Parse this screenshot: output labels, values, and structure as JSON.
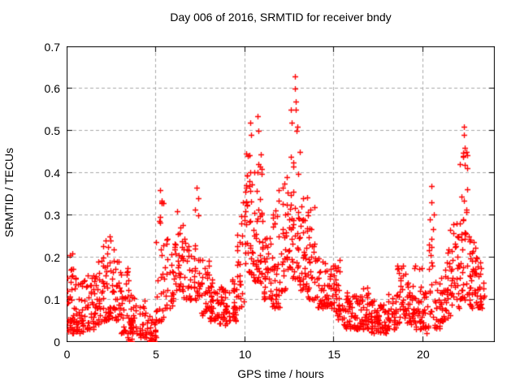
{
  "figure_title": "Day 006 of 2016, SRMTID for receiver bndy",
  "chart_data": {
    "type": "scatter",
    "title": "Day 006 of 2016, SRMTID for receiver bndy",
    "xlabel": "GPS time / hours",
    "ylabel": "SRMTID / TECUs",
    "xlim": [
      0,
      24
    ],
    "ylim": [
      0,
      0.7
    ],
    "x_ticks": [
      0,
      5,
      10,
      15,
      20
    ],
    "x_tick_labels": [
      "0",
      "5",
      "10",
      "15",
      "20"
    ],
    "y_ticks": [
      0,
      0.1,
      0.2,
      0.3,
      0.4,
      0.5,
      0.6,
      0.7
    ],
    "y_tick_labels": [
      "0",
      "0.1",
      "0.2",
      "0.3",
      "0.4",
      "0.5",
      "0.6",
      "0.7"
    ],
    "grid": "dashed-gray-at-major-ticks",
    "grid_color": "#a9a9a9",
    "marker": "plus",
    "marker_color": "#ff0000",
    "marker_size_px": 7,
    "series_name": "SRMTID",
    "y_skew": 1.6,
    "cluster_fields": [
      "x_start_hour",
      "x_end_hour",
      "y_min_tecu",
      "y_max_tecu",
      "point_count"
    ],
    "clusters": [
      [
        0.0,
        0.5,
        0.02,
        0.21,
        40
      ],
      [
        0.5,
        1.0,
        0.02,
        0.15,
        36
      ],
      [
        1.0,
        1.5,
        0.03,
        0.17,
        32
      ],
      [
        1.5,
        2.0,
        0.04,
        0.2,
        32
      ],
      [
        2.0,
        2.5,
        0.05,
        0.25,
        36
      ],
      [
        2.5,
        3.0,
        0.05,
        0.22,
        32
      ],
      [
        3.0,
        3.5,
        0.02,
        0.18,
        30
      ],
      [
        3.4,
        3.7,
        0.0,
        0.06,
        14
      ],
      [
        3.5,
        4.0,
        0.02,
        0.12,
        28
      ],
      [
        4.0,
        4.5,
        0.01,
        0.1,
        26
      ],
      [
        4.5,
        5.0,
        0.0,
        0.08,
        26
      ],
      [
        5.0,
        5.5,
        0.05,
        0.34,
        26
      ],
      [
        5.5,
        6.0,
        0.08,
        0.25,
        26
      ],
      [
        6.0,
        6.5,
        0.12,
        0.3,
        30
      ],
      [
        6.5,
        7.0,
        0.1,
        0.25,
        26
      ],
      [
        7.0,
        7.5,
        0.1,
        0.35,
        26
      ],
      [
        7.5,
        8.0,
        0.06,
        0.2,
        26
      ],
      [
        8.0,
        8.5,
        0.05,
        0.15,
        34
      ],
      [
        8.5,
        9.0,
        0.04,
        0.13,
        34
      ],
      [
        9.0,
        9.5,
        0.05,
        0.15,
        26
      ],
      [
        9.5,
        10.0,
        0.08,
        0.32,
        30
      ],
      [
        10.0,
        10.5,
        0.15,
        0.45,
        42
      ],
      [
        10.5,
        11.0,
        0.14,
        0.46,
        42
      ],
      [
        11.0,
        11.5,
        0.1,
        0.3,
        30
      ],
      [
        11.5,
        12.0,
        0.08,
        0.34,
        36
      ],
      [
        12.0,
        12.5,
        0.12,
        0.4,
        36
      ],
      [
        12.5,
        13.0,
        0.15,
        0.52,
        36
      ],
      [
        13.0,
        13.5,
        0.12,
        0.35,
        36
      ],
      [
        13.5,
        14.0,
        0.1,
        0.32,
        30
      ],
      [
        14.0,
        14.5,
        0.08,
        0.2,
        30
      ],
      [
        14.5,
        15.0,
        0.08,
        0.18,
        30
      ],
      [
        15.0,
        15.5,
        0.05,
        0.2,
        30
      ],
      [
        15.5,
        16.0,
        0.03,
        0.12,
        30
      ],
      [
        16.0,
        16.5,
        0.03,
        0.12,
        32
      ],
      [
        16.5,
        17.0,
        0.03,
        0.13,
        32
      ],
      [
        17.0,
        17.5,
        0.02,
        0.1,
        32
      ],
      [
        17.5,
        18.0,
        0.02,
        0.09,
        30
      ],
      [
        18.0,
        18.5,
        0.03,
        0.12,
        30
      ],
      [
        18.5,
        19.0,
        0.04,
        0.18,
        30
      ],
      [
        19.0,
        19.5,
        0.04,
        0.14,
        30
      ],
      [
        19.5,
        20.0,
        0.03,
        0.19,
        30
      ],
      [
        20.0,
        20.3,
        0.02,
        0.12,
        16
      ],
      [
        20.3,
        20.6,
        0.05,
        0.34,
        18
      ],
      [
        20.6,
        21.0,
        0.03,
        0.15,
        22
      ],
      [
        21.0,
        21.5,
        0.05,
        0.22,
        34
      ],
      [
        21.5,
        22.0,
        0.08,
        0.28,
        34
      ],
      [
        22.0,
        22.5,
        0.1,
        0.46,
        38
      ],
      [
        22.5,
        23.0,
        0.08,
        0.25,
        38
      ],
      [
        23.0,
        23.45,
        0.08,
        0.2,
        26
      ]
    ],
    "peak_fields": [
      "hour",
      "tecu"
    ],
    "peak_points": [
      [
        0.15,
        0.205
      ],
      [
        2.38,
        0.25
      ],
      [
        2.42,
        0.24
      ],
      [
        5.22,
        0.36
      ],
      [
        5.3,
        0.33
      ],
      [
        6.2,
        0.31
      ],
      [
        7.3,
        0.365
      ],
      [
        7.35,
        0.34
      ],
      [
        9.9,
        0.33
      ],
      [
        10.3,
        0.52
      ],
      [
        10.35,
        0.49
      ],
      [
        10.7,
        0.535
      ],
      [
        10.75,
        0.5
      ],
      [
        11.9,
        0.36
      ],
      [
        12.55,
        0.55
      ],
      [
        12.6,
        0.52
      ],
      [
        12.78,
        0.63
      ],
      [
        12.8,
        0.6
      ],
      [
        12.83,
        0.57
      ],
      [
        12.86,
        0.55
      ],
      [
        12.9,
        0.5
      ],
      [
        13.05,
        0.45
      ],
      [
        13.9,
        0.32
      ],
      [
        20.45,
        0.37
      ],
      [
        20.47,
        0.33
      ],
      [
        22.26,
        0.44
      ],
      [
        22.28,
        0.51
      ],
      [
        22.3,
        0.49
      ],
      [
        22.32,
        0.46
      ],
      [
        22.35,
        0.42
      ]
    ]
  }
}
